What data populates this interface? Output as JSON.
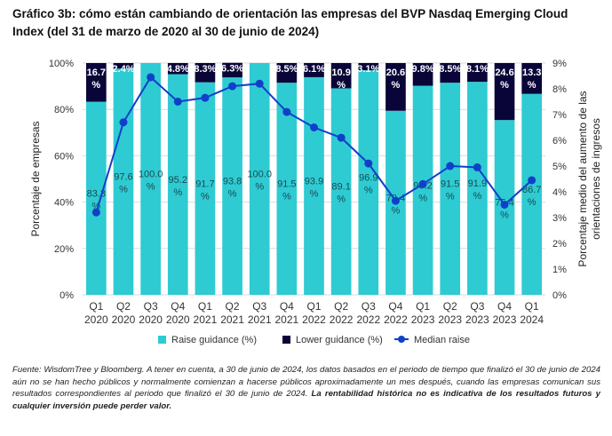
{
  "title": "Gráfico 3b: cómo están cambiando de orientación las empresas del BVP Nasdaq Emerging Cloud Index (del 31 de marzo de 2020 al 30 de junio de 2024)",
  "footnote": {
    "text": "Fuente: WisdomTree y Bloomberg. A tener en cuenta, a 30 de junio de 2024, los datos basados en el periodo de tiempo que finalizó el 30 de junio de 2024 aún no se han hecho públicos y normalmente comienzan a hacerse públicos aproximadamente un mes después, cuando las empresas comunican sus resultados correspondientes al periodo que finalizó el 30 de junio de 2024. ",
    "bold": "La rentabilidad histórica no es indicativa de los resultados futuros y cualquier inversión puede perder valor."
  },
  "chart_data": {
    "type": "bar",
    "stacked": true,
    "categories": [
      [
        "Q1",
        "2020"
      ],
      [
        "Q2",
        "2020"
      ],
      [
        "Q3",
        "2020"
      ],
      [
        "Q4",
        "2020"
      ],
      [
        "Q1",
        "2021"
      ],
      [
        "Q2",
        "2021"
      ],
      [
        "Q3",
        "2021"
      ],
      [
        "Q4",
        "2021"
      ],
      [
        "Q1",
        "2022"
      ],
      [
        "Q2",
        "2022"
      ],
      [
        "Q3",
        "2022"
      ],
      [
        "Q4",
        "2022"
      ],
      [
        "Q1",
        "2023"
      ],
      [
        "Q2",
        "2023"
      ],
      [
        "Q3",
        "2023"
      ],
      [
        "Q4",
        "2023"
      ],
      [
        "Q1",
        "2024"
      ]
    ],
    "series": [
      {
        "name": "Raise guidance (%)",
        "axis": "left",
        "color": "#2ecbd3",
        "values": [
          83.3,
          97.6,
          100.0,
          95.2,
          91.7,
          93.8,
          100.0,
          91.5,
          93.9,
          89.1,
          96.9,
          79.4,
          90.2,
          91.5,
          91.9,
          75.4,
          86.7
        ],
        "labels": [
          "83.3 %",
          "97.6 %",
          "100.0 %",
          "95.2 %",
          "91.7 %",
          "93.8 %",
          "100.0 %",
          "91.5 %",
          "93.9 %",
          "89.1 %",
          "96.9 %",
          "79.4 %",
          "90.2 %",
          "91.5 %",
          "91.9 %",
          "75.4 %",
          "86.7 %"
        ]
      },
      {
        "name": "Lower guidance (%)",
        "axis": "left",
        "color": "#0a0538",
        "values": [
          16.7,
          2.4,
          0,
          4.8,
          8.3,
          6.3,
          0,
          8.5,
          6.1,
          10.9,
          3.1,
          20.6,
          9.8,
          8.5,
          8.1,
          24.6,
          13.3
        ],
        "labels": [
          "16.7 %",
          "2.4%",
          "",
          "4.8%",
          "8.3%",
          "6.3%",
          "",
          "8.5%",
          "6.1%",
          "10.9 %",
          "3.1%",
          "20.6 %",
          "9.8%",
          "8.5%",
          "8.1%",
          "24.6 %",
          "13.3 %"
        ]
      },
      {
        "name": "Median raise",
        "type": "line",
        "axis": "right",
        "color": "#1040c8",
        "values": [
          3.2,
          6.7,
          8.45,
          7.5,
          7.65,
          8.1,
          8.2,
          7.1,
          6.5,
          6.1,
          5.1,
          3.65,
          4.3,
          5.0,
          4.95,
          3.5,
          4.45
        ]
      }
    ],
    "ylabel": "Porcentaje de empresas",
    "y2label": [
      "Porcentaje medio del aumento de las",
      "orientaciones de ingresos"
    ],
    "ylim": [
      0,
      100
    ],
    "yticks": [
      "0%",
      "20%",
      "40%",
      "60%",
      "80%",
      "100%"
    ],
    "y2lim": [
      0,
      9
    ],
    "y2ticks": [
      "0%",
      "1%",
      "2%",
      "3%",
      "4%",
      "5%",
      "6%",
      "7%",
      "8%",
      "9%"
    ],
    "grid": true,
    "legend": "bottom"
  }
}
